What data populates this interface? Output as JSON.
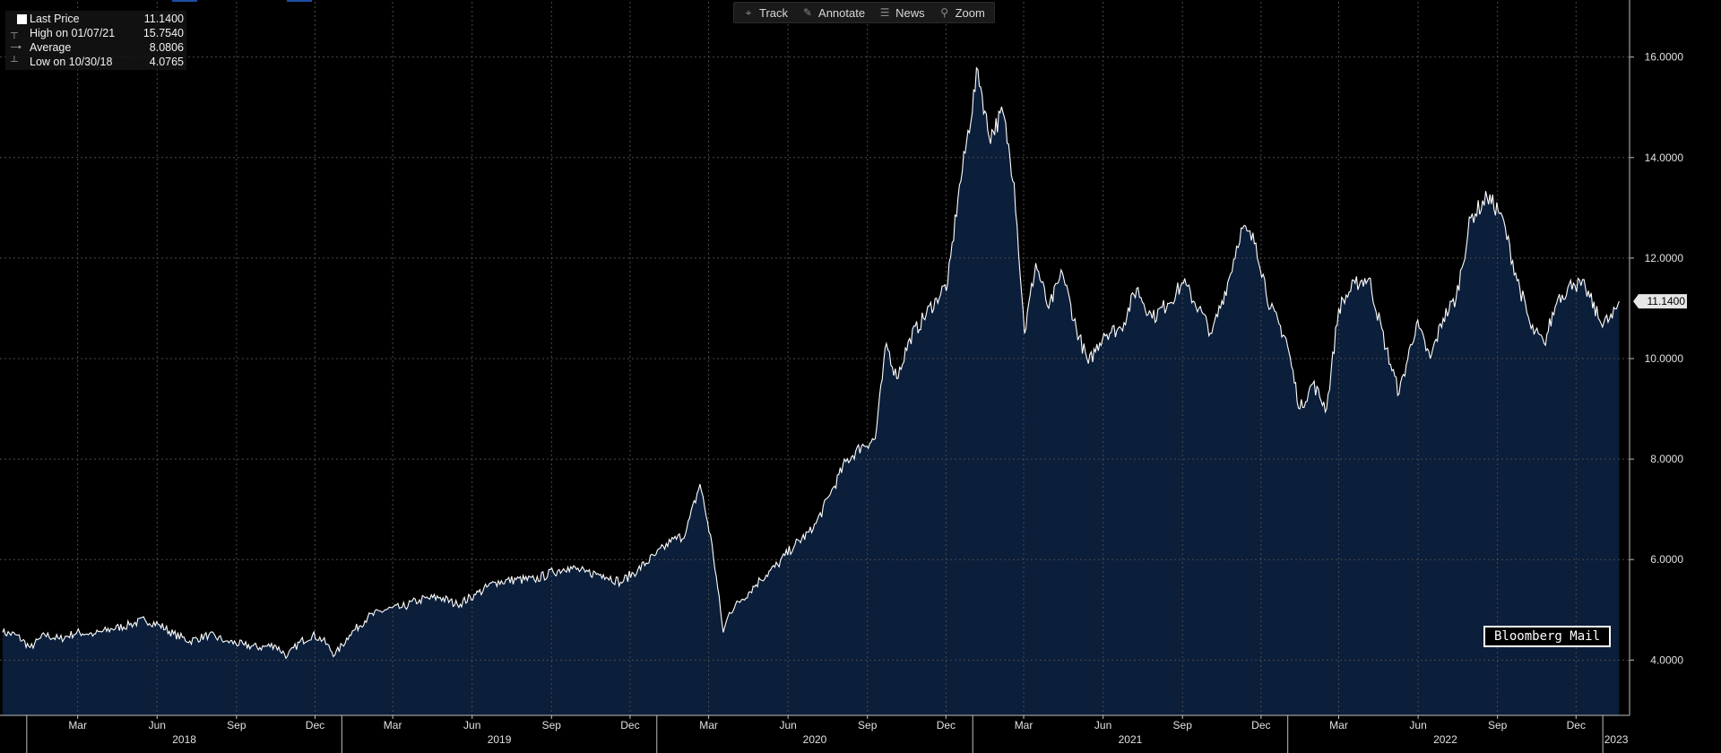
{
  "toolbar": {
    "items": [
      {
        "label": "Track",
        "icon": "crosshair-icon"
      },
      {
        "label": "Annotate",
        "icon": "pencil-icon"
      },
      {
        "label": "News",
        "icon": "news-icon"
      },
      {
        "label": "Zoom",
        "icon": "magnifier-icon"
      }
    ]
  },
  "legend": {
    "rows": [
      {
        "label": "Last Price",
        "value": "11.1400"
      },
      {
        "label": "High on 01/07/21",
        "value": "15.7540"
      },
      {
        "label": "Average",
        "value": "8.0806"
      },
      {
        "label": "Low on 10/30/18",
        "value": "4.0765"
      }
    ]
  },
  "last_price_tag": "11.1400",
  "watermark": "Bloomberg Mail",
  "colors": {
    "background": "#000000",
    "area": "#0b1e3a",
    "line": "#ffffff",
    "grid": "#4a4a4a",
    "tag_bg": "#e6e6e6"
  },
  "chart_data": {
    "type": "area",
    "series": [
      {
        "values": [
          [
            "2017-12-04",
            4.55
          ],
          [
            "2017-12-20",
            4.5
          ],
          [
            "2018-01-05",
            4.25
          ],
          [
            "2018-01-22",
            4.5
          ],
          [
            "2018-02-08",
            4.42
          ],
          [
            "2018-02-28",
            4.55
          ],
          [
            "2018-03-20",
            4.52
          ],
          [
            "2018-04-10",
            4.62
          ],
          [
            "2018-04-30",
            4.7
          ],
          [
            "2018-05-18",
            4.8
          ],
          [
            "2018-06-04",
            4.7
          ],
          [
            "2018-06-20",
            4.52
          ],
          [
            "2018-07-09",
            4.38
          ],
          [
            "2018-07-31",
            4.5
          ],
          [
            "2018-08-20",
            4.38
          ],
          [
            "2018-09-10",
            4.3
          ],
          [
            "2018-09-28",
            4.25
          ],
          [
            "2018-10-15",
            4.3
          ],
          [
            "2018-10-30",
            4.08
          ],
          [
            "2018-11-13",
            4.35
          ],
          [
            "2018-11-28",
            4.5
          ],
          [
            "2018-12-10",
            4.4
          ],
          [
            "2018-12-24",
            4.1
          ],
          [
            "2019-01-10",
            4.5
          ],
          [
            "2019-01-31",
            4.85
          ],
          [
            "2019-02-20",
            5.0
          ],
          [
            "2019-03-12",
            5.05
          ],
          [
            "2019-04-01",
            5.2
          ],
          [
            "2019-04-25",
            5.25
          ],
          [
            "2019-05-15",
            5.1
          ],
          [
            "2019-06-05",
            5.3
          ],
          [
            "2019-06-28",
            5.55
          ],
          [
            "2019-07-22",
            5.6
          ],
          [
            "2019-08-12",
            5.6
          ],
          [
            "2019-09-03",
            5.75
          ],
          [
            "2019-09-20",
            5.85
          ],
          [
            "2019-10-10",
            5.75
          ],
          [
            "2019-10-31",
            5.7
          ],
          [
            "2019-11-20",
            5.55
          ],
          [
            "2019-12-10",
            5.8
          ],
          [
            "2019-12-31",
            6.1
          ],
          [
            "2020-01-17",
            6.35
          ],
          [
            "2020-02-03",
            6.5
          ],
          [
            "2020-02-20",
            7.5
          ],
          [
            "2020-03-05",
            6.3
          ],
          [
            "2020-03-18",
            4.55
          ],
          [
            "2020-03-25",
            4.95
          ],
          [
            "2020-04-08",
            5.2
          ],
          [
            "2020-04-30",
            5.6
          ],
          [
            "2020-05-20",
            5.9
          ],
          [
            "2020-06-09",
            6.3
          ],
          [
            "2020-06-30",
            6.6
          ],
          [
            "2020-07-20",
            7.3
          ],
          [
            "2020-08-07",
            7.95
          ],
          [
            "2020-08-25",
            8.25
          ],
          [
            "2020-09-10",
            8.4
          ],
          [
            "2020-09-23",
            10.3
          ],
          [
            "2020-10-05",
            9.6
          ],
          [
            "2020-10-20",
            10.4
          ],
          [
            "2020-11-05",
            10.8
          ],
          [
            "2020-11-20",
            11.2
          ],
          [
            "2020-12-03",
            11.5
          ],
          [
            "2020-12-15",
            13.2
          ],
          [
            "2021-01-07",
            15.75
          ],
          [
            "2021-01-20",
            14.4
          ],
          [
            "2021-02-05",
            14.9
          ],
          [
            "2021-02-18",
            13.5
          ],
          [
            "2021-03-02",
            10.5
          ],
          [
            "2021-03-15",
            11.9
          ],
          [
            "2021-03-30",
            11.0
          ],
          [
            "2021-04-15",
            11.7
          ],
          [
            "2021-05-01",
            10.6
          ],
          [
            "2021-05-15",
            9.9
          ],
          [
            "2021-06-02",
            10.5
          ],
          [
            "2021-06-22",
            10.6
          ],
          [
            "2021-07-10",
            11.4
          ],
          [
            "2021-07-28",
            10.8
          ],
          [
            "2021-08-15",
            11.1
          ],
          [
            "2021-09-02",
            11.5
          ],
          [
            "2021-09-20",
            11.0
          ],
          [
            "2021-10-05",
            10.5
          ],
          [
            "2021-10-25",
            11.6
          ],
          [
            "2021-11-08",
            12.6
          ],
          [
            "2021-11-25",
            12.3
          ],
          [
            "2021-12-12",
            11.0
          ],
          [
            "2021-12-30",
            10.4
          ],
          [
            "2022-01-15",
            9.0
          ],
          [
            "2022-01-30",
            9.5
          ],
          [
            "2022-02-15",
            9.0
          ],
          [
            "2022-03-01",
            11.0
          ],
          [
            "2022-03-20",
            11.5
          ],
          [
            "2022-04-05",
            11.6
          ],
          [
            "2022-04-25",
            10.2
          ],
          [
            "2022-05-10",
            9.3
          ],
          [
            "2022-05-30",
            10.7
          ],
          [
            "2022-06-15",
            10.0
          ],
          [
            "2022-06-30",
            10.8
          ],
          [
            "2022-07-15",
            11.2
          ],
          [
            "2022-08-01",
            12.8
          ],
          [
            "2022-08-20",
            13.2
          ],
          [
            "2022-09-05",
            12.9
          ],
          [
            "2022-09-22",
            11.7
          ],
          [
            "2022-10-10",
            10.6
          ],
          [
            "2022-10-25",
            10.3
          ],
          [
            "2022-11-10",
            11.2
          ],
          [
            "2022-11-28",
            11.5
          ],
          [
            "2022-12-12",
            11.4
          ],
          [
            "2022-12-30",
            10.7
          ],
          [
            "2023-01-12",
            10.8
          ],
          [
            "2023-01-20",
            11.14
          ]
        ]
      }
    ],
    "ylim": [
      2.9,
      17.1
    ],
    "yticks": [
      "4.0000",
      "6.0000",
      "8.0000",
      "10.0000",
      "12.0000",
      "14.0000",
      "16.0000"
    ],
    "xlim": [
      "2017-12-01",
      "2023-02-01"
    ],
    "xticks_months": [
      {
        "label": "Mar",
        "date": "2018-03-01"
      },
      {
        "label": "Jun",
        "date": "2018-06-01"
      },
      {
        "label": "Sep",
        "date": "2018-09-01"
      },
      {
        "label": "Dec",
        "date": "2018-12-01"
      },
      {
        "label": "Mar",
        "date": "2019-03-01"
      },
      {
        "label": "Jun",
        "date": "2019-06-01"
      },
      {
        "label": "Sep",
        "date": "2019-09-01"
      },
      {
        "label": "Dec",
        "date": "2019-12-01"
      },
      {
        "label": "Mar",
        "date": "2020-03-01"
      },
      {
        "label": "Jun",
        "date": "2020-06-01"
      },
      {
        "label": "Sep",
        "date": "2020-09-01"
      },
      {
        "label": "Dec",
        "date": "2020-12-01"
      },
      {
        "label": "Mar",
        "date": "2021-03-01"
      },
      {
        "label": "Jun",
        "date": "2021-06-01"
      },
      {
        "label": "Sep",
        "date": "2021-09-01"
      },
      {
        "label": "Dec",
        "date": "2021-12-01"
      },
      {
        "label": "Mar",
        "date": "2022-03-01"
      },
      {
        "label": "Jun",
        "date": "2022-06-01"
      },
      {
        "label": "Sep",
        "date": "2022-09-01"
      },
      {
        "label": "Dec",
        "date": "2022-12-01"
      }
    ],
    "xticks_years": [
      {
        "label": "2018",
        "start": "2018-01-01",
        "end": "2019-01-01"
      },
      {
        "label": "2019",
        "start": "2019-01-01",
        "end": "2020-01-01"
      },
      {
        "label": "2020",
        "start": "2020-01-01",
        "end": "2021-01-01"
      },
      {
        "label": "2021",
        "start": "2021-01-01",
        "end": "2022-01-01"
      },
      {
        "label": "2022",
        "start": "2022-01-01",
        "end": "2023-01-01"
      },
      {
        "label": "2023",
        "start": "2023-01-01",
        "end": "2023-02-01"
      }
    ],
    "grid": true,
    "legend_position": "top-left"
  }
}
